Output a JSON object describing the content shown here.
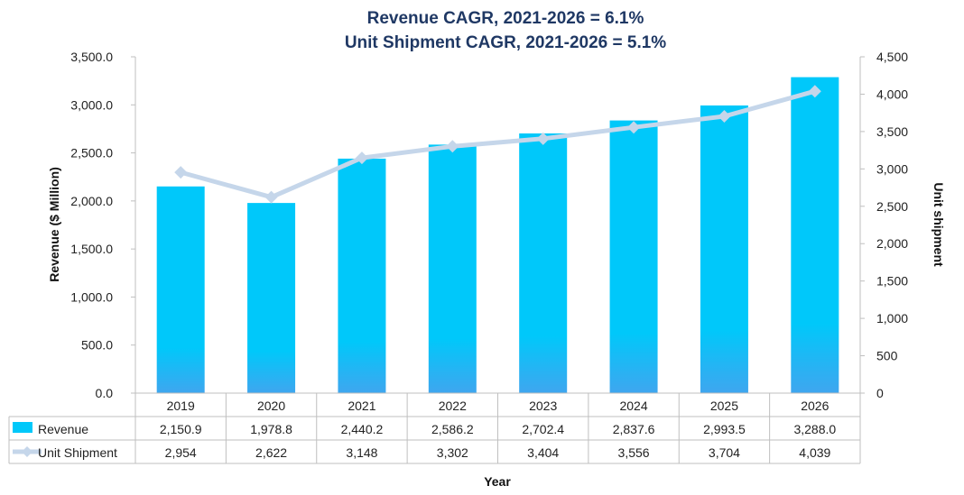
{
  "chart_data": {
    "type": "bar",
    "title_lines": [
      "Revenue CAGR, 2021-2026 = 6.1%",
      "Unit Shipment CAGR, 2021-2026 = 5.1%"
    ],
    "categories": [
      "2019",
      "2020",
      "2021",
      "2022",
      "2023",
      "2024",
      "2025",
      "2026"
    ],
    "series": [
      {
        "name": "Revenue",
        "type": "bar",
        "axis": "left",
        "color": "#00c8fa",
        "color_bottom": "#3fa6ef",
        "values": [
          2150.9,
          1978.8,
          2440.2,
          2586.2,
          2702.4,
          2837.6,
          2993.5,
          3288.0
        ],
        "table_values": [
          "2,150.9",
          "1,978.8",
          "2,440.2",
          "2,586.2",
          "2,702.4",
          "2,837.6",
          "2,993.5",
          "3,288.0"
        ]
      },
      {
        "name": "Unit Shipment",
        "type": "line",
        "axis": "right",
        "color": "#c5d6ea",
        "values": [
          2954,
          2622,
          3148,
          3302,
          3404,
          3556,
          3704,
          4039
        ],
        "table_values": [
          "2,954",
          "2,622",
          "3,148",
          "3,302",
          "3,404",
          "3,556",
          "3,704",
          "4,039"
        ]
      }
    ],
    "xlabel": "Year",
    "ylabel": "Revenue ($ Million)",
    "y2label": "Unit shipment",
    "ylim": [
      0,
      3500
    ],
    "y2lim": [
      0,
      4500
    ],
    "yticks": [
      0,
      500,
      1000,
      1500,
      2000,
      2500,
      3000,
      3500
    ],
    "ytick_labels": [
      "0.0",
      "500.0",
      "1,000.0",
      "1,500.0",
      "2,000.0",
      "2,500.0",
      "3,000.0",
      "3,500.0"
    ],
    "y2ticks": [
      0,
      500,
      1000,
      1500,
      2000,
      2500,
      3000,
      3500,
      4000,
      4500
    ],
    "y2tick_labels": [
      "0",
      "500",
      "1,000",
      "1,500",
      "2,000",
      "2,500",
      "3,000",
      "3,500",
      "4,000",
      "4,500"
    ],
    "grid": false,
    "data_table": true,
    "axis_color": "#bfbfbf",
    "title_color": "#1f3864"
  }
}
